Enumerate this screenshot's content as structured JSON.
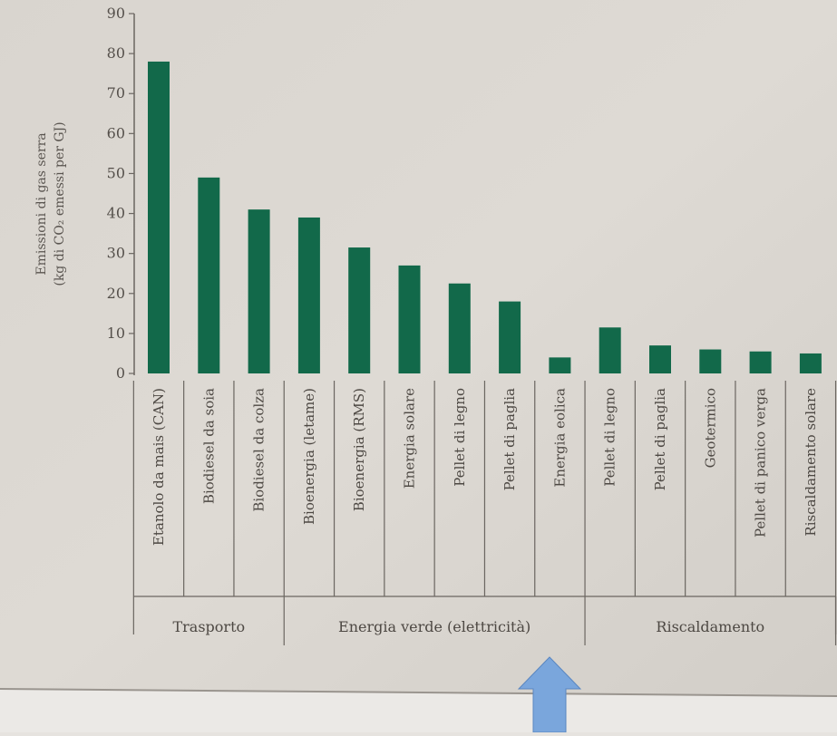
{
  "chart_data": {
    "type": "bar",
    "ylabel": "Emissioni di gas serra",
    "ylabel_unit": "(kg di CO₂ emessi per GJ)",
    "ylim": [
      0,
      90
    ],
    "yticks": [
      0,
      10,
      20,
      30,
      40,
      50,
      60,
      70,
      80,
      90
    ],
    "grid": false,
    "bar_color": "#12694a",
    "categories": [
      "Etanolo da mais (CAN)",
      "Biodiesel da soia",
      "Biodiesel da colza",
      "Bioenergia (letame)",
      "Bioenergia (RMS)",
      "Energia solare",
      "Pellet di legno",
      "Pellet di paglia",
      "Energia eolica",
      "Pellet di legno",
      "Pellet di paglia",
      "Geotermico",
      "Pellet di panico verga",
      "Riscaldamento solare"
    ],
    "values": [
      78,
      49,
      41,
      39,
      31.5,
      27,
      22.5,
      18,
      4,
      11.5,
      7,
      6,
      5.5,
      5
    ],
    "groups": [
      {
        "label": "Trasporto",
        "count": 3
      },
      {
        "label": "Energia verde (elettricità)",
        "count": 6
      },
      {
        "label": "Riscaldamento",
        "count": 5
      }
    ]
  },
  "annotation": {
    "arrow_color": "#7aa6dc"
  }
}
